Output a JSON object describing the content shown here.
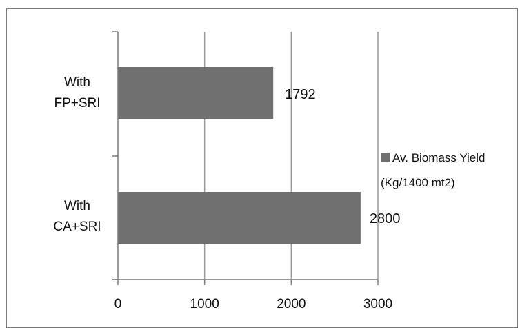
{
  "chart_data": {
    "type": "bar",
    "orientation": "horizontal",
    "categories": [
      [
        "With",
        "FP+SRI"
      ],
      [
        "With",
        "CA+SRI"
      ]
    ],
    "series": [
      {
        "name": "Av. Biomass Yield (Kg/1400 mt2)",
        "values": [
          1792,
          2800
        ]
      }
    ],
    "legend_lines": [
      "Av. Biomass Yield",
      "(Kg/1400 mt2)"
    ],
    "x_ticks": [
      "0",
      "1000",
      "2000",
      "3000"
    ],
    "xlim": [
      0,
      3000
    ],
    "grid": true,
    "legend": "right",
    "bar_color": "#707070",
    "grid_color": "#9a9a9a",
    "data_labels": [
      "1792",
      "2800"
    ]
  }
}
